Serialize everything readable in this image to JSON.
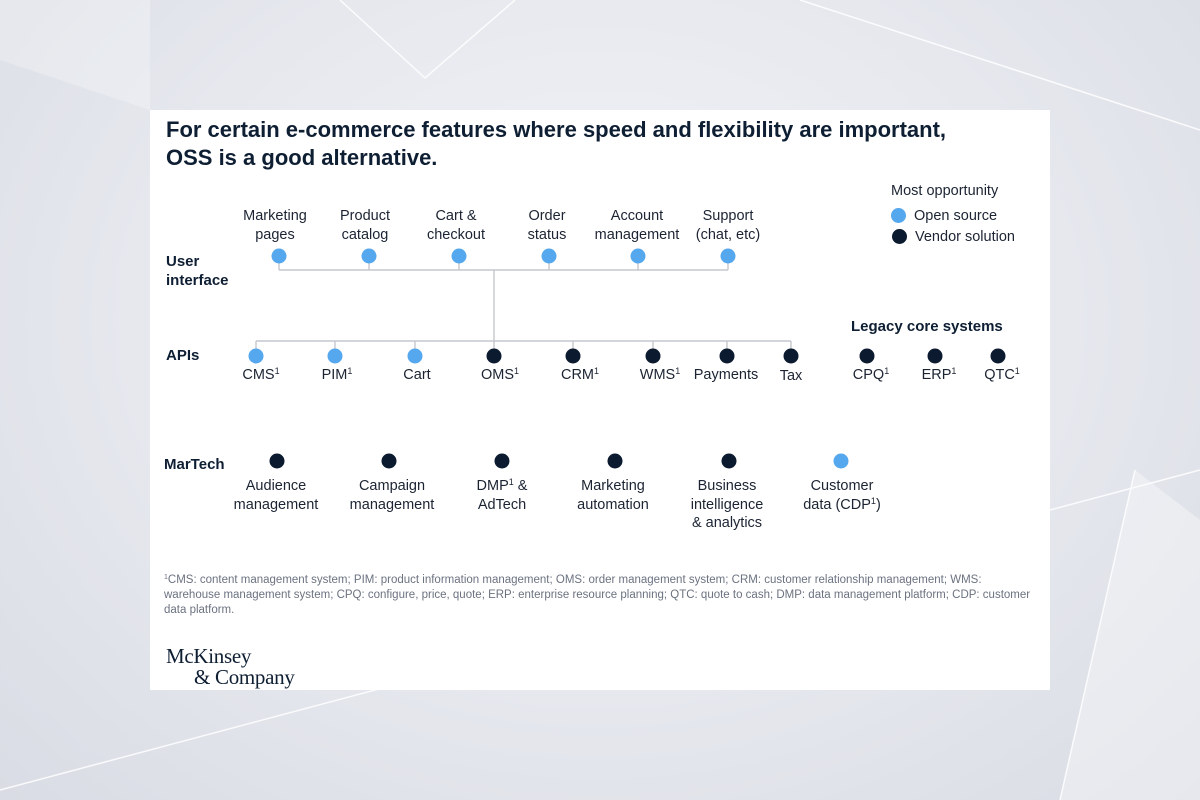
{
  "title": {
    "line1": "For certain e-commerce features where speed and flexibility are important,",
    "line2": "OSS is a good alternative."
  },
  "legend": {
    "title": "Most opportunity",
    "items": [
      {
        "label": "Open source",
        "kind": "open"
      },
      {
        "label": "Vendor solution",
        "kind": "vendor"
      }
    ]
  },
  "colors": {
    "open_source": "#55a8ee",
    "vendor_solution": "#0b1a2e",
    "connector": "#c4c8ce"
  },
  "rows": {
    "user_interface": {
      "label_line1": "User",
      "label_line2": "interface",
      "items": [
        {
          "line1": "Marketing",
          "line2": "pages",
          "kind": "open"
        },
        {
          "line1": "Product",
          "line2": "catalog",
          "kind": "open"
        },
        {
          "line1": "Cart &",
          "line2": "checkout",
          "kind": "open"
        },
        {
          "line1": "Order",
          "line2": "status",
          "kind": "open"
        },
        {
          "line1": "Account",
          "line2": "management",
          "kind": "open"
        },
        {
          "line1": "Support",
          "line2": "(chat, etc)",
          "kind": "open"
        }
      ]
    },
    "apis": {
      "label": "APIs",
      "items": [
        {
          "label": "CMS",
          "sup": "1",
          "kind": "open"
        },
        {
          "label": "PIM",
          "sup": "1",
          "kind": "open"
        },
        {
          "label": "Cart",
          "sup": "",
          "kind": "open"
        },
        {
          "label": "OMS",
          "sup": "1",
          "kind": "vendor"
        },
        {
          "label": "CRM",
          "sup": "1",
          "kind": "vendor"
        },
        {
          "label": "WMS",
          "sup": "1",
          "kind": "vendor"
        },
        {
          "label": "Payments",
          "sup": "",
          "kind": "vendor"
        },
        {
          "label": "Tax",
          "sup": "",
          "kind": "vendor"
        }
      ]
    },
    "legacy": {
      "title": "Legacy core systems",
      "items": [
        {
          "label": "CPQ",
          "sup": "1",
          "kind": "vendor"
        },
        {
          "label": "ERP",
          "sup": "1",
          "kind": "vendor"
        },
        {
          "label": "QTC",
          "sup": "1",
          "kind": "vendor"
        }
      ]
    },
    "martech": {
      "label": "MarTech",
      "items": [
        {
          "line1": "Audience",
          "line2": "management",
          "kind": "vendor"
        },
        {
          "line1": "Campaign",
          "line2": "management",
          "kind": "vendor"
        },
        {
          "line1a": "DMP",
          "sup": "1",
          "line1b": " &",
          "line2": "AdTech",
          "kind": "vendor"
        },
        {
          "line1": "Marketing",
          "line2": "automation",
          "kind": "vendor"
        },
        {
          "line1": "Business",
          "line2": "intelligence",
          "line3": "& analytics",
          "kind": "vendor"
        },
        {
          "line1": "Customer",
          "line2a": "data (CDP",
          "sup": "1",
          "line2b": ")",
          "kind": "open"
        }
      ]
    }
  },
  "footnote": {
    "marker": "1",
    "text": "CMS: content management system; PIM: product information management; OMS: order management system; CRM: customer relationship management; WMS: warehouse management system; CPQ: configure, price, quote; ERP: enterprise resource planning; QTC: quote to cash; DMP: data management platform; CDP: customer data platform."
  },
  "logo": {
    "line1": "McKinsey",
    "line2": "& Company"
  }
}
